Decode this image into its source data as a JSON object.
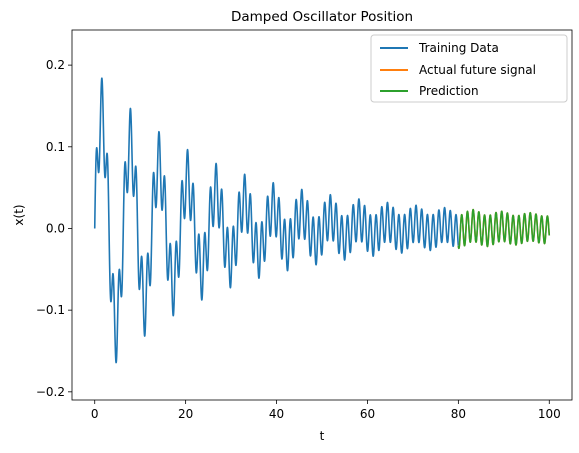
{
  "chart_data": {
    "type": "line",
    "title": "Damped Oscillator Position",
    "xlabel": "t",
    "ylabel": "x(t)",
    "xlim": [
      -5,
      105
    ],
    "ylim": [
      -0.21,
      0.243
    ],
    "xticks": [
      0,
      20,
      40,
      60,
      80,
      100
    ],
    "yticks": [
      -0.2,
      -0.1,
      0.0,
      0.1,
      0.2
    ],
    "xtick_labels": [
      "0",
      "20",
      "40",
      "60",
      "80",
      "100"
    ],
    "ytick_labels": [
      "−0.2",
      "−0.1",
      "0.0",
      "0.1",
      "0.2"
    ],
    "grid": false,
    "legend_position": "top-right",
    "series": [
      {
        "name": "Training Data",
        "color": "#1f77b4",
        "t_start": 0,
        "t_end": 80,
        "model": {
          "slow": {
            "amplitude": 0.15,
            "omega": 1.0,
            "decay": 0.045
          },
          "fast": {
            "amplitude": 0.045,
            "omega": 5.0,
            "decay": 0.01
          }
        }
      },
      {
        "name": "Actual future signal",
        "color": "#ff7f0e",
        "t_start": 80,
        "t_end": 100,
        "model": {
          "slow": {
            "amplitude": 0.15,
            "omega": 1.0,
            "decay": 0.045
          },
          "fast": {
            "amplitude": 0.045,
            "omega": 5.0,
            "decay": 0.01
          }
        }
      },
      {
        "name": "Prediction",
        "color": "#2ca02c",
        "t_start": 80,
        "t_end": 100,
        "model": {
          "slow": {
            "amplitude": 0.15,
            "omega": 1.0,
            "decay": 0.045
          },
          "fast": {
            "amplitude": 0.045,
            "omega": 5.0,
            "decay": 0.01
          }
        }
      }
    ]
  }
}
